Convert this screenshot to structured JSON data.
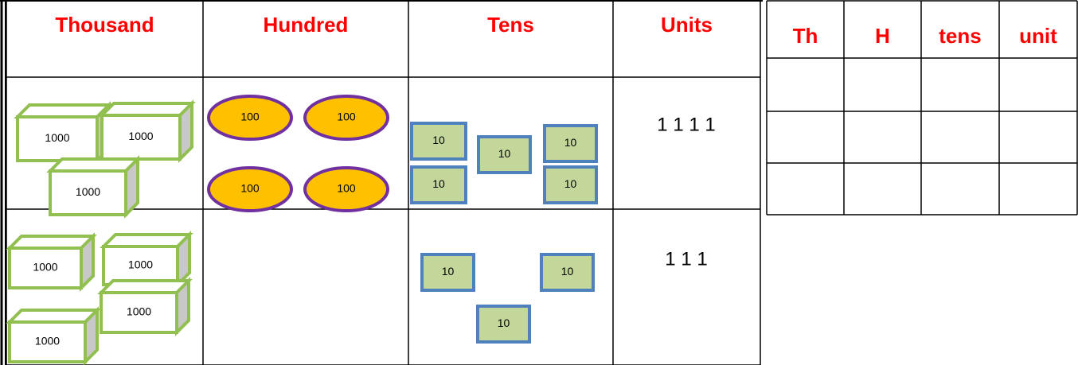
{
  "left_table": {
    "headers": [
      "Thousand",
      "Hundred",
      "Tens",
      "Units"
    ],
    "rows": [
      {
        "thousands": [
          "1000",
          "1000",
          "1000"
        ],
        "hundreds": [
          "100",
          "100",
          "100",
          "100"
        ],
        "tens": [
          "10",
          "10",
          "10",
          "10",
          "10"
        ],
        "units": "1 1 1 1"
      },
      {
        "thousands": [
          "1000",
          "1000",
          "1000",
          "1000"
        ],
        "tens": [
          "10",
          "10",
          "10"
        ],
        "units": "1 1 1"
      }
    ]
  },
  "right_table": {
    "headers": [
      "Th",
      "H",
      "tens",
      "unit"
    ]
  }
}
